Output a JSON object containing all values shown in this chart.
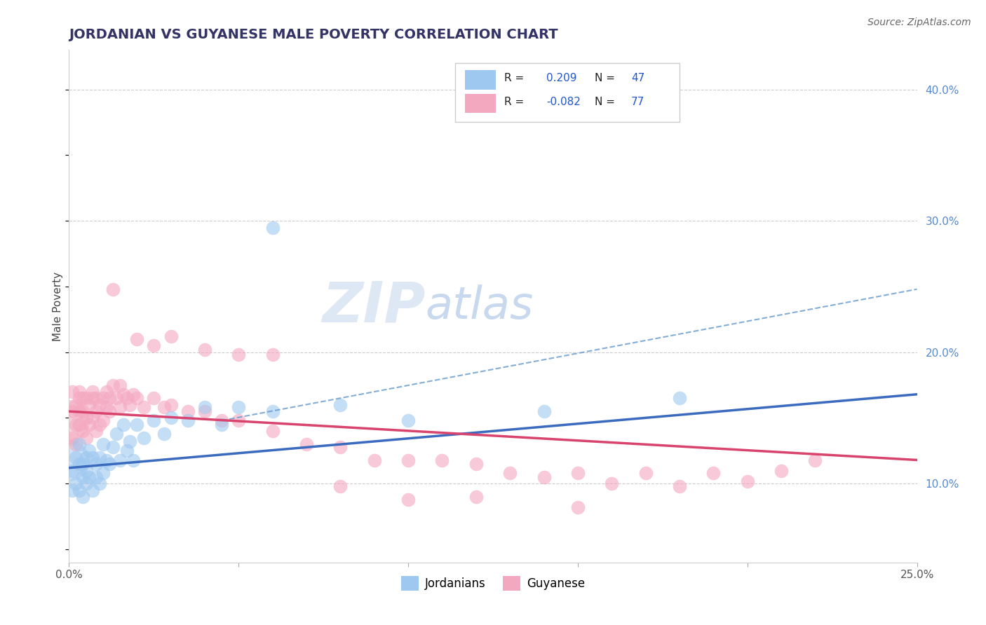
{
  "title": "JORDANIAN VS GUYANESE MALE POVERTY CORRELATION CHART",
  "source": "Source: ZipAtlas.com",
  "ylabel": "Male Poverty",
  "y_ticks_right": [
    0.1,
    0.2,
    0.3,
    0.4
  ],
  "y_tick_labels_right": [
    "10.0%",
    "20.0%",
    "30.0%",
    "40.0%"
  ],
  "xlim": [
    0.0,
    0.25
  ],
  "ylim": [
    0.04,
    0.43
  ],
  "r_jordan": 0.209,
  "n_jordan": 47,
  "r_guyanese": -0.082,
  "n_guyanese": 77,
  "color_jordan": "#9ec8f0",
  "color_jordan_line": "#3b6bbf",
  "color_guyanese": "#f4a8c0",
  "color_guyanese_line": "#d9446e",
  "color_dash": "#6699cc",
  "watermark_zip": "ZIP",
  "watermark_atlas": "atlas",
  "watermark_color_zip": "#dde8f4",
  "watermark_color_atlas": "#c8d8ee",
  "legend_labels": [
    "Jordanians",
    "Guyanese"
  ],
  "jordan_x": [
    0.001,
    0.001,
    0.002,
    0.002,
    0.003,
    0.003,
    0.003,
    0.004,
    0.004,
    0.004,
    0.005,
    0.005,
    0.005,
    0.006,
    0.006,
    0.007,
    0.007,
    0.008,
    0.008,
    0.009,
    0.009,
    0.01,
    0.01,
    0.011,
    0.012,
    0.013,
    0.014,
    0.015,
    0.016,
    0.017,
    0.018,
    0.019,
    0.02,
    0.022,
    0.025,
    0.028,
    0.03,
    0.035,
    0.04,
    0.045,
    0.05,
    0.06,
    0.08,
    0.1,
    0.14,
    0.18,
    0.06
  ],
  "jordan_y": [
    0.11,
    0.095,
    0.12,
    0.1,
    0.115,
    0.095,
    0.13,
    0.105,
    0.115,
    0.09,
    0.12,
    0.1,
    0.11,
    0.125,
    0.105,
    0.12,
    0.095,
    0.115,
    0.105,
    0.12,
    0.1,
    0.13,
    0.108,
    0.118,
    0.115,
    0.128,
    0.138,
    0.118,
    0.145,
    0.125,
    0.132,
    0.118,
    0.145,
    0.135,
    0.148,
    0.138,
    0.15,
    0.148,
    0.158,
    0.145,
    0.158,
    0.155,
    0.16,
    0.148,
    0.155,
    0.165,
    0.295
  ],
  "guyanese_x": [
    0.001,
    0.001,
    0.001,
    0.002,
    0.002,
    0.002,
    0.003,
    0.003,
    0.003,
    0.003,
    0.004,
    0.004,
    0.004,
    0.005,
    0.005,
    0.005,
    0.006,
    0.006,
    0.007,
    0.007,
    0.007,
    0.008,
    0.008,
    0.008,
    0.009,
    0.009,
    0.01,
    0.01,
    0.011,
    0.011,
    0.012,
    0.012,
    0.013,
    0.014,
    0.015,
    0.015,
    0.016,
    0.017,
    0.018,
    0.019,
    0.02,
    0.022,
    0.025,
    0.028,
    0.03,
    0.035,
    0.04,
    0.045,
    0.05,
    0.06,
    0.07,
    0.08,
    0.09,
    0.1,
    0.11,
    0.12,
    0.13,
    0.14,
    0.15,
    0.16,
    0.17,
    0.18,
    0.19,
    0.2,
    0.21,
    0.22,
    0.013,
    0.02,
    0.025,
    0.03,
    0.04,
    0.05,
    0.06,
    0.08,
    0.1,
    0.12,
    0.15
  ],
  "guyanese_y": [
    0.155,
    0.135,
    0.17,
    0.145,
    0.16,
    0.13,
    0.165,
    0.145,
    0.155,
    0.17,
    0.155,
    0.14,
    0.165,
    0.15,
    0.165,
    0.135,
    0.16,
    0.145,
    0.165,
    0.15,
    0.17,
    0.155,
    0.165,
    0.14,
    0.16,
    0.145,
    0.165,
    0.148,
    0.158,
    0.17,
    0.155,
    0.165,
    0.175,
    0.165,
    0.175,
    0.158,
    0.168,
    0.165,
    0.16,
    0.168,
    0.165,
    0.158,
    0.165,
    0.158,
    0.16,
    0.155,
    0.155,
    0.148,
    0.148,
    0.14,
    0.13,
    0.128,
    0.118,
    0.118,
    0.118,
    0.115,
    0.108,
    0.105,
    0.108,
    0.1,
    0.108,
    0.098,
    0.108,
    0.102,
    0.11,
    0.118,
    0.248,
    0.21,
    0.205,
    0.212,
    0.202,
    0.198,
    0.198,
    0.098,
    0.088,
    0.09,
    0.082
  ],
  "jordan_line_x0": 0.0,
  "jordan_line_y0": 0.112,
  "jordan_line_x1": 0.25,
  "jordan_line_y1": 0.168,
  "guyanese_line_x0": 0.0,
  "guyanese_line_y0": 0.155,
  "guyanese_line_x1": 0.25,
  "guyanese_line_y1": 0.118,
  "dash_line_x0": 0.045,
  "dash_line_y0": 0.148,
  "dash_line_x1": 0.25,
  "dash_line_y1": 0.248
}
